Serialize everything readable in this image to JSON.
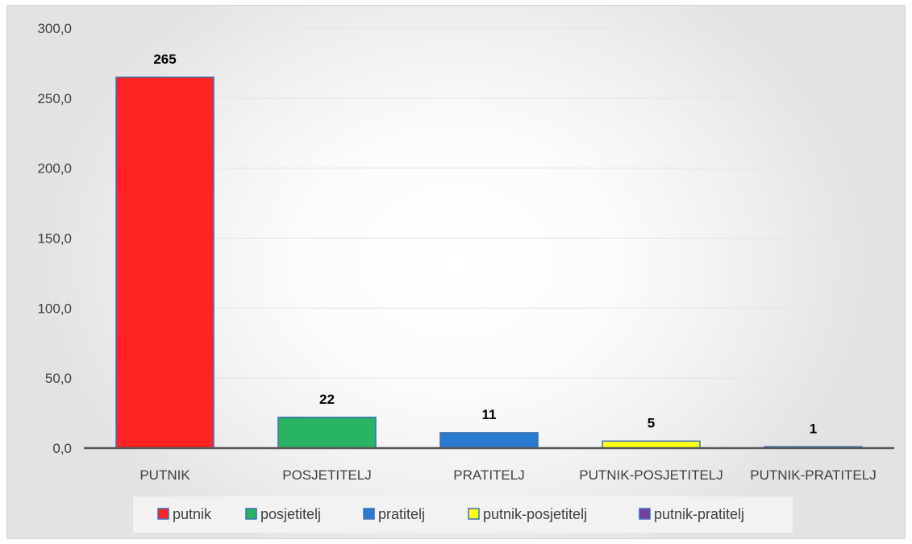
{
  "chart_data": {
    "type": "bar",
    "categories": [
      "PUTNIK",
      "POSJETITELJ",
      "PRATITELJ",
      "PUTNIK-POSJETITELJ",
      "PUTNIK-PRATITELJ"
    ],
    "values": [
      265,
      22,
      11,
      5,
      1
    ],
    "data_labels": [
      "265",
      "22",
      "11",
      "5",
      "1"
    ],
    "ylim": [
      0,
      300
    ],
    "yticks": [
      0,
      50,
      100,
      150,
      200,
      250,
      300
    ],
    "ytick_labels": [
      "0,0",
      "50,0",
      "100,0",
      "150,0",
      "200,0",
      "250,0",
      "300,0"
    ],
    "legend": [
      "putnik",
      "posjetitelj",
      "pratitelj",
      "putnik-posjetitelj",
      "putnik-pratitelj"
    ],
    "legend_position": "bottom",
    "colors": [
      "#ff2323",
      "#28b463",
      "#2a7bd0",
      "#ffff1a",
      "#7040a0"
    ],
    "bar_stroke": "#3a6fb3",
    "grid": true,
    "title": "",
    "xlabel": "",
    "ylabel": ""
  }
}
